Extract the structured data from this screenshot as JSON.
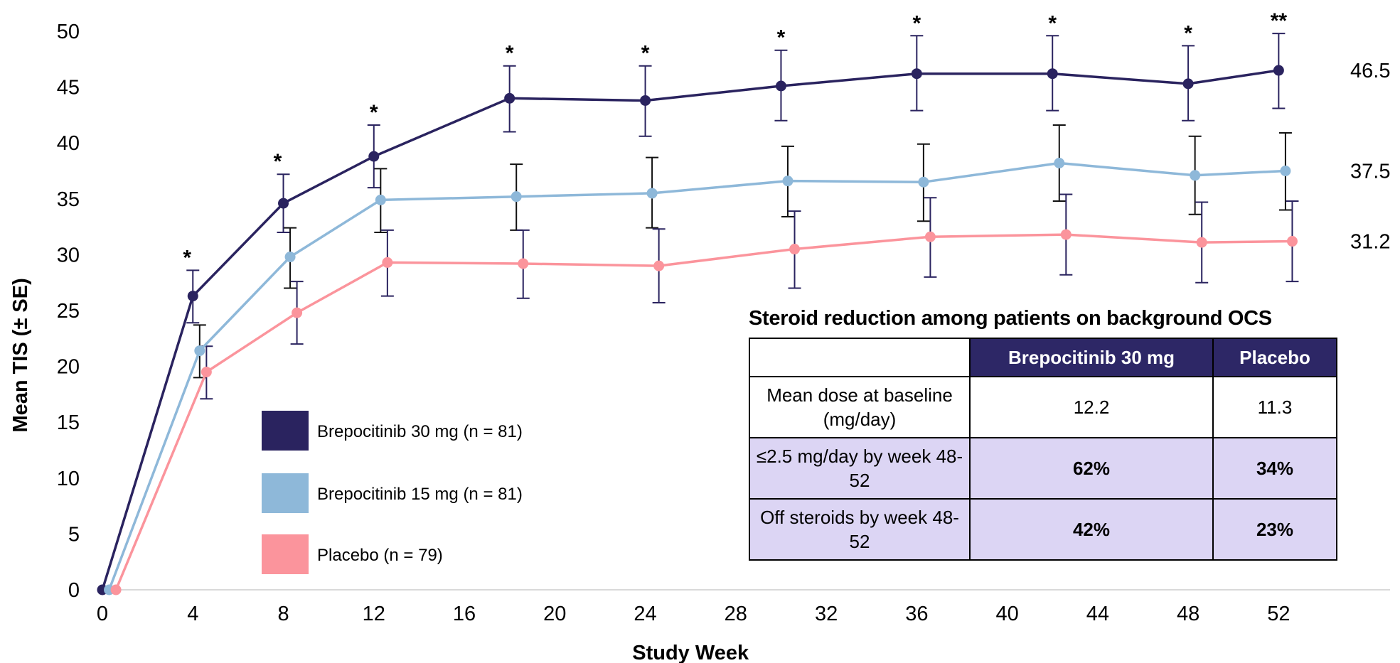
{
  "chart_data": {
    "type": "line",
    "xlabel": "Study Week",
    "ylabel": "Mean TIS (± SE)",
    "xlim": [
      0,
      54
    ],
    "ylim": [
      0,
      50
    ],
    "xticks": [
      0,
      4,
      8,
      12,
      16,
      20,
      24,
      28,
      32,
      36,
      40,
      44,
      48,
      52
    ],
    "yticks": [
      0,
      5,
      10,
      15,
      20,
      25,
      30,
      35,
      40,
      45,
      50
    ],
    "grid": false,
    "legend_position": "lower-left",
    "series": [
      {
        "name": "Brepocitinib 30 mg (n = 81)",
        "color": "#2a235f",
        "x": [
          0,
          4,
          8,
          12,
          18,
          24,
          30,
          36,
          42,
          48,
          52
        ],
        "y": [
          0,
          26.3,
          34.6,
          38.8,
          44.0,
          43.8,
          45.1,
          46.2,
          46.2,
          45.3,
          46.5
        ],
        "se_low": [
          0,
          23.9,
          32.0,
          36.0,
          41.0,
          40.6,
          42.0,
          42.9,
          42.9,
          42.0,
          43.1
        ],
        "se_high": [
          0,
          28.6,
          37.2,
          41.6,
          46.9,
          46.9,
          48.3,
          49.6,
          49.6,
          48.7,
          49.8
        ],
        "end_label": "46.5"
      },
      {
        "name": "Brepocitinib 15 mg (n = 81)",
        "color": "#8eb8d9",
        "x": [
          0.3,
          4.3,
          8.3,
          12.3,
          18.3,
          24.3,
          30.3,
          36.3,
          42.3,
          48.3,
          52.3
        ],
        "y": [
          0,
          21.4,
          29.8,
          34.9,
          35.2,
          35.5,
          36.6,
          36.5,
          38.2,
          37.1,
          37.5
        ],
        "se_low": [
          0,
          19.0,
          27.0,
          32.0,
          32.2,
          32.4,
          33.4,
          33.0,
          34.8,
          33.6,
          34.0
        ],
        "se_high": [
          0,
          23.7,
          32.4,
          37.7,
          38.1,
          38.7,
          39.7,
          39.9,
          41.6,
          40.6,
          40.9
        ],
        "end_label": "37.5"
      },
      {
        "name": "Placebo (n = 79)",
        "color": "#fb949c",
        "x": [
          0.6,
          4.6,
          8.6,
          12.6,
          18.6,
          24.6,
          30.6,
          36.6,
          42.6,
          48.6,
          52.6
        ],
        "y": [
          0,
          19.5,
          24.8,
          29.3,
          29.2,
          29.0,
          30.5,
          31.6,
          31.8,
          31.1,
          31.2
        ],
        "se_low": [
          0,
          17.1,
          22.0,
          26.3,
          26.1,
          25.7,
          27.0,
          28.0,
          28.2,
          27.5,
          27.6
        ],
        "se_high": [
          0,
          21.8,
          27.6,
          32.2,
          32.2,
          32.3,
          33.9,
          35.1,
          35.4,
          34.7,
          34.8
        ],
        "end_label": "31.2"
      }
    ],
    "significance": [
      {
        "x": 4,
        "label": "*"
      },
      {
        "x": 8,
        "label": "*"
      },
      {
        "x": 12,
        "label": "*"
      },
      {
        "x": 18,
        "label": "*"
      },
      {
        "x": 24,
        "label": "*"
      },
      {
        "x": 30,
        "label": "*"
      },
      {
        "x": 36,
        "label": "*"
      },
      {
        "x": 42,
        "label": "*"
      },
      {
        "x": 48,
        "label": "*"
      },
      {
        "x": 52,
        "label": "**"
      }
    ]
  },
  "table": {
    "title": "Steroid reduction among patients on background OCS",
    "headers": [
      "",
      "Brepocitinib 30 mg",
      "Placebo"
    ],
    "rows": [
      {
        "label": "Mean dose at baseline (mg/day)",
        "values": [
          "12.2",
          "11.3"
        ]
      },
      {
        "label": "≤2.5 mg/day by week 48-52",
        "values": [
          "62%",
          "34%"
        ]
      },
      {
        "label": "Off steroids by week 48-52",
        "values": [
          "42%",
          "23%"
        ]
      }
    ]
  }
}
